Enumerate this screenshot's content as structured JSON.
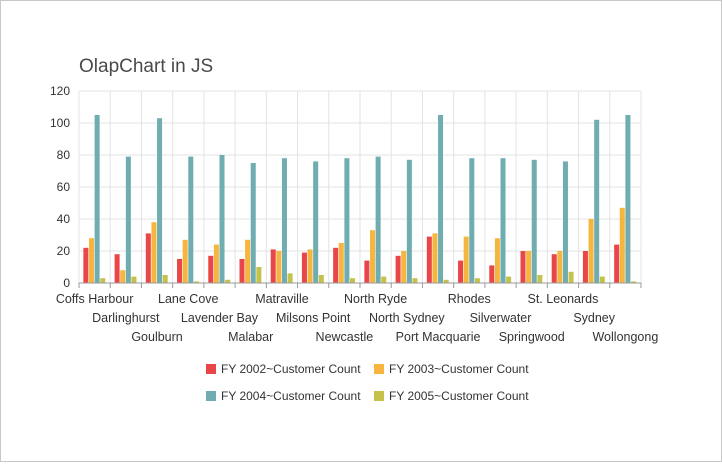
{
  "chart_data": {
    "type": "bar",
    "title": "OlapChart in JS",
    "xlabel": "",
    "ylabel": "",
    "ylim": [
      0,
      120
    ],
    "yticks": [
      0,
      20,
      40,
      60,
      80,
      100,
      120
    ],
    "grid": true,
    "legend_position": "bottom",
    "categories": [
      "Coffs Harbour",
      "Darlinghurst",
      "Goulburn",
      "Lane Cove",
      "Lavender Bay",
      "Malabar",
      "Matraville",
      "Milsons Point",
      "Newcastle",
      "North Ryde",
      "North Sydney",
      "Port Macquarie",
      "Rhodes",
      "Silverwater",
      "Springwood",
      "St. Leonards",
      "Sydney",
      "Wollongong"
    ],
    "series": [
      {
        "name": "FY 2002~Customer Count",
        "color": "#e94649",
        "values": [
          22,
          18,
          31,
          15,
          17,
          15,
          21,
          19,
          22,
          14,
          17,
          29,
          14,
          11,
          20,
          18,
          20,
          24
        ]
      },
      {
        "name": "FY 2003~Customer Count",
        "color": "#f6b53f",
        "values": [
          28,
          8,
          38,
          27,
          24,
          27,
          20,
          21,
          25,
          33,
          20,
          31,
          29,
          28,
          20,
          20,
          40,
          47
        ]
      },
      {
        "name": "FY 2004~Customer Count",
        "color": "#6fadb0",
        "values": [
          105,
          79,
          103,
          79,
          80,
          75,
          78,
          76,
          78,
          79,
          77,
          105,
          78,
          78,
          77,
          76,
          102,
          105
        ]
      },
      {
        "name": "FY 2005~Customer Count",
        "color": "#c4c24a",
        "values": [
          3,
          4,
          5,
          1,
          2,
          10,
          6,
          5,
          3,
          4,
          3,
          2,
          3,
          4,
          5,
          7,
          4,
          1
        ]
      }
    ]
  }
}
